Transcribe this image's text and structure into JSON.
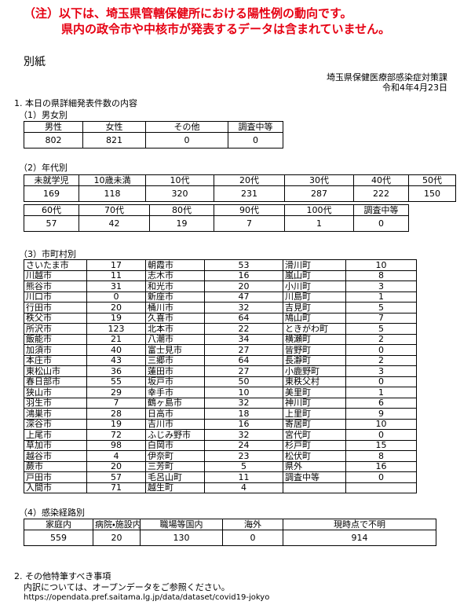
{
  "notice": [
    "（注）以下は、埼玉県管轄保健所における陽性例の動向です。",
    "県内の政令市や中核市が発表するデータは含まれていません。"
  ],
  "attachment": "別紙",
  "department": "埼玉県保健医療部感染症対策課",
  "date": "令和4年4月23日",
  "section1": {
    "title": "1. 本日の県詳細発表件数の内容",
    "by_sex": {
      "title": "（1）男女別",
      "headers": [
        "男性",
        "女性",
        "その他",
        "調査中等"
      ],
      "values": [
        802,
        821,
        0,
        0
      ]
    },
    "by_age": {
      "title": "（2）年代別",
      "tables": [
        {
          "headers": [
            "未就学児",
            "10歳未満",
            "10代",
            "20代",
            "30代",
            "40代",
            "50代"
          ],
          "values": [
            169,
            118,
            320,
            231,
            287,
            222,
            150
          ]
        },
        {
          "headers": [
            "60代",
            "70代",
            "80代",
            "90代",
            "100代",
            "調査中等"
          ],
          "values": [
            57,
            42,
            19,
            7,
            1,
            0
          ]
        }
      ]
    },
    "by_municipality": {
      "title": "（3）市町村別",
      "rows": [
        [
          "さいたま市",
          17,
          "朝霞市",
          53,
          "滑川町",
          10
        ],
        [
          "川越市",
          11,
          "志木市",
          16,
          "嵐山町",
          8
        ],
        [
          "熊谷市",
          31,
          "和光市",
          20,
          "小川町",
          3
        ],
        [
          "川口市",
          0,
          "新座市",
          47,
          "川島町",
          1
        ],
        [
          "行田市",
          20,
          "桶川市",
          32,
          "吉見町",
          5
        ],
        [
          "秩父市",
          19,
          "久喜市",
          64,
          "鳩山町",
          7
        ],
        [
          "所沢市",
          123,
          "北本市",
          22,
          "ときがわ町",
          5
        ],
        [
          "飯能市",
          21,
          "八潮市",
          34,
          "横瀬町",
          2
        ],
        [
          "加須市",
          40,
          "富士見市",
          27,
          "皆野町",
          0
        ],
        [
          "本庄市",
          43,
          "三郷市",
          64,
          "長瀞町",
          2
        ],
        [
          "東松山市",
          36,
          "蓮田市",
          27,
          "小鹿野町",
          3
        ],
        [
          "春日部市",
          55,
          "坂戸市",
          50,
          "東秩父村",
          0
        ],
        [
          "狭山市",
          29,
          "幸手市",
          10,
          "美里町",
          1
        ],
        [
          "羽生市",
          7,
          "鶴ヶ島市",
          32,
          "神川町",
          6
        ],
        [
          "鴻巣市",
          28,
          "日高市",
          18,
          "上里町",
          9
        ],
        [
          "深谷市",
          19,
          "吉川市",
          16,
          "寄居町",
          10
        ],
        [
          "上尾市",
          72,
          "ふじみ野市",
          32,
          "宮代町",
          0
        ],
        [
          "草加市",
          98,
          "白岡市",
          24,
          "杉戸町",
          15
        ],
        [
          "越谷市",
          4,
          "伊奈町",
          23,
          "松伏町",
          8
        ],
        [
          "蕨市",
          20,
          "三芳町",
          5,
          "県外",
          16
        ],
        [
          "戸田市",
          57,
          "毛呂山町",
          11,
          "調査中等",
          0
        ],
        [
          "入間市",
          71,
          "越生町",
          4
        ]
      ]
    },
    "by_route": {
      "title": "（4）感染経路別",
      "headers": [
        "家庭内",
        "病院・施設内",
        "職場等国内",
        "海外",
        "現時点で不明"
      ],
      "values": [
        559,
        20,
        130,
        0,
        914
      ]
    }
  },
  "section2": {
    "title": "2. その他特筆すべき事項",
    "lines": [
      "内訳については、オープンデータをご参照ください。",
      "https://opendata.pref.saitama.lg.jp/data/dataset/covid19-jokyo"
    ]
  }
}
